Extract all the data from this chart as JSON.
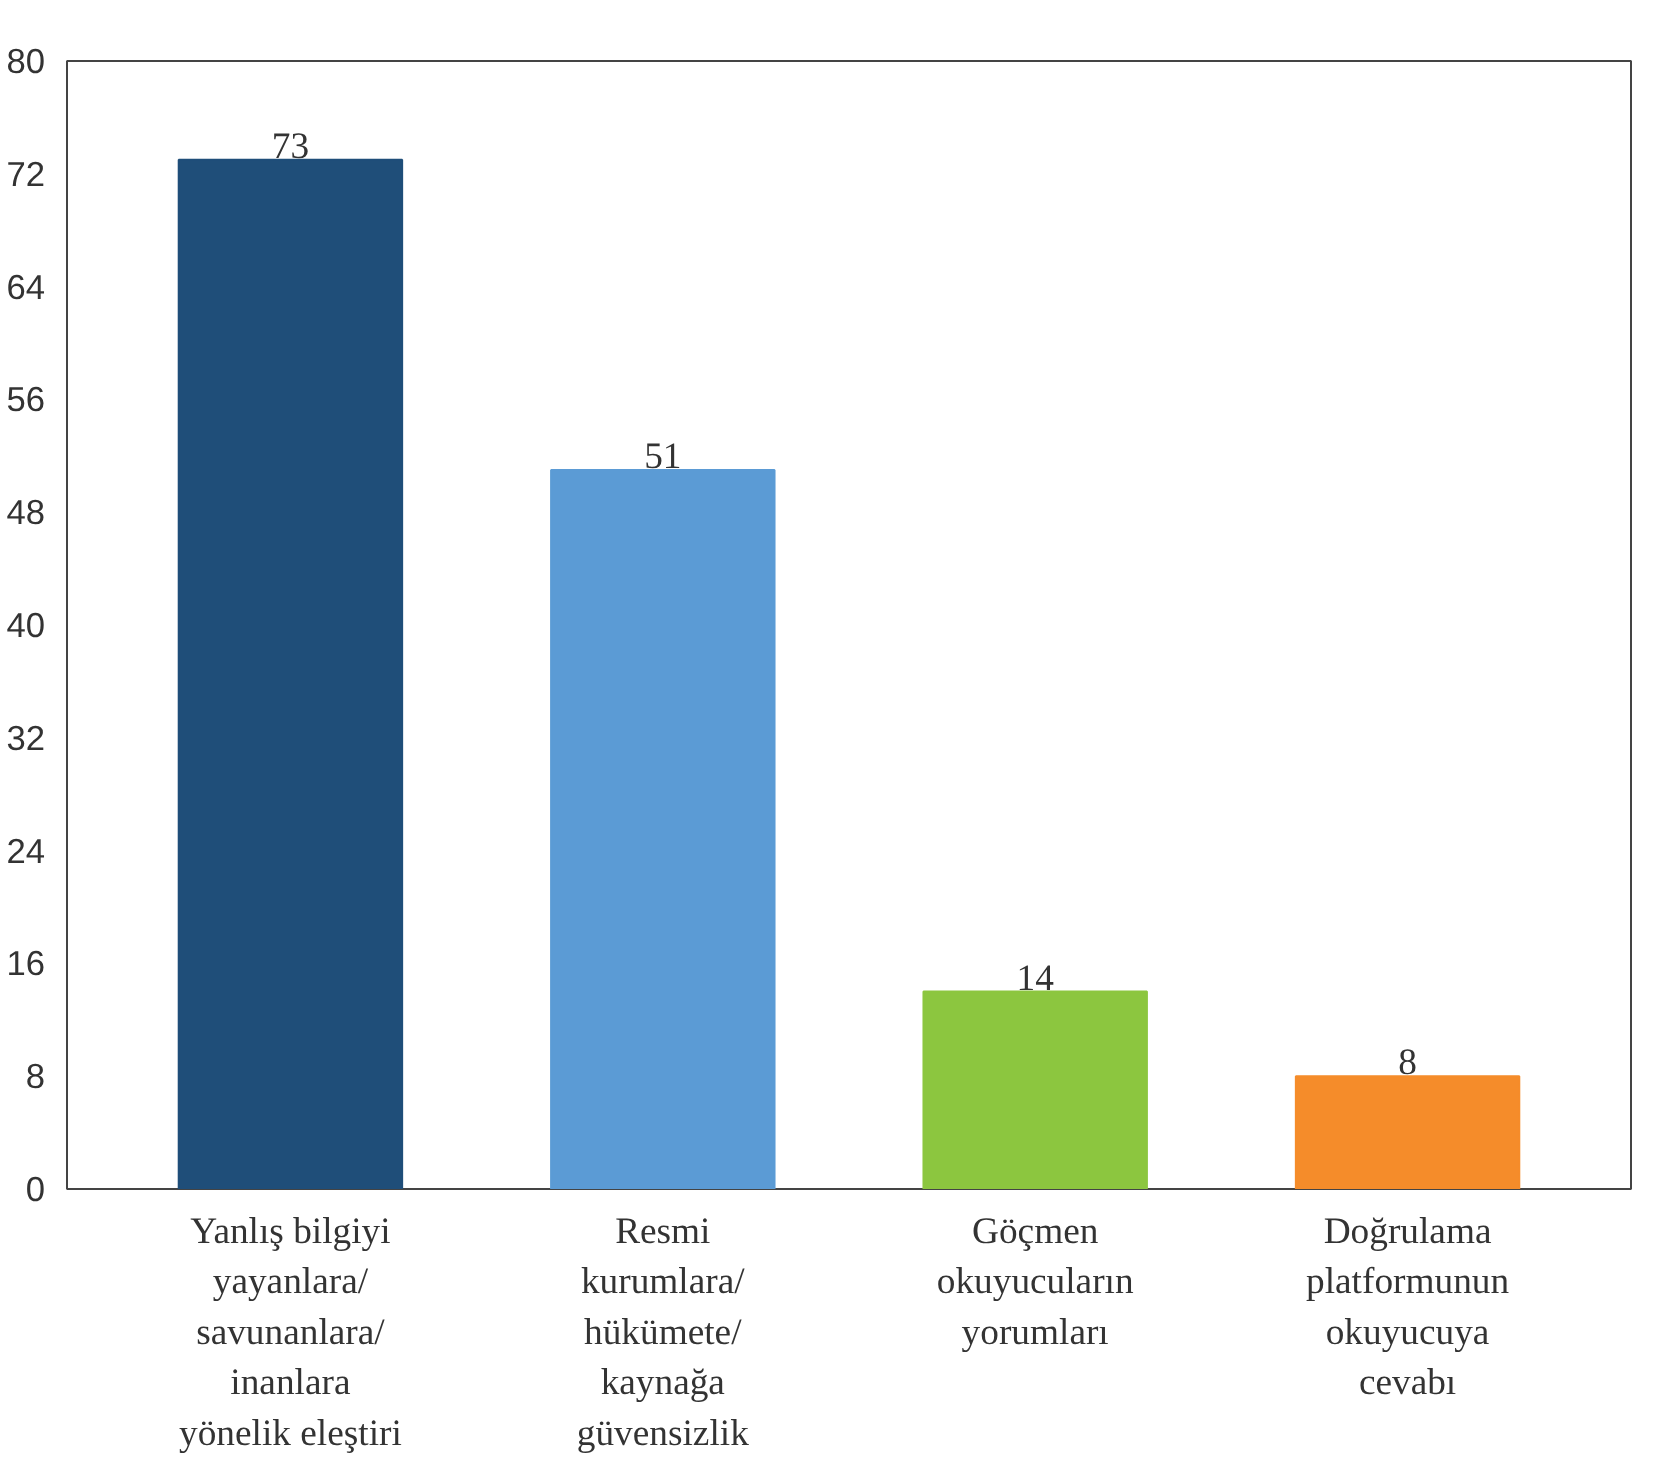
{
  "chart_data": {
    "type": "bar",
    "categories": [
      "Yanlış bilgiyi\nyayanlara/\nsavunanlara/\ninanlara\nyönelik eleştiri",
      "Resmi\nkurumlara/\nhükümete/\nkaynağa\ngüvensizlik",
      "Göçmen\nokuyucuların\nyorumları",
      "Doğrulama\nplatformunun\nokuyucuya\ncevabı"
    ],
    "values": [
      73,
      51,
      14,
      8
    ],
    "colors": [
      "#1f4e79",
      "#5b9bd5",
      "#8cc63f",
      "#f58c2a"
    ],
    "ylim": [
      0,
      80
    ],
    "yticks": [
      0,
      8,
      16,
      24,
      32,
      40,
      48,
      56,
      64,
      72,
      80
    ],
    "data_labels": true,
    "grid": false
  }
}
